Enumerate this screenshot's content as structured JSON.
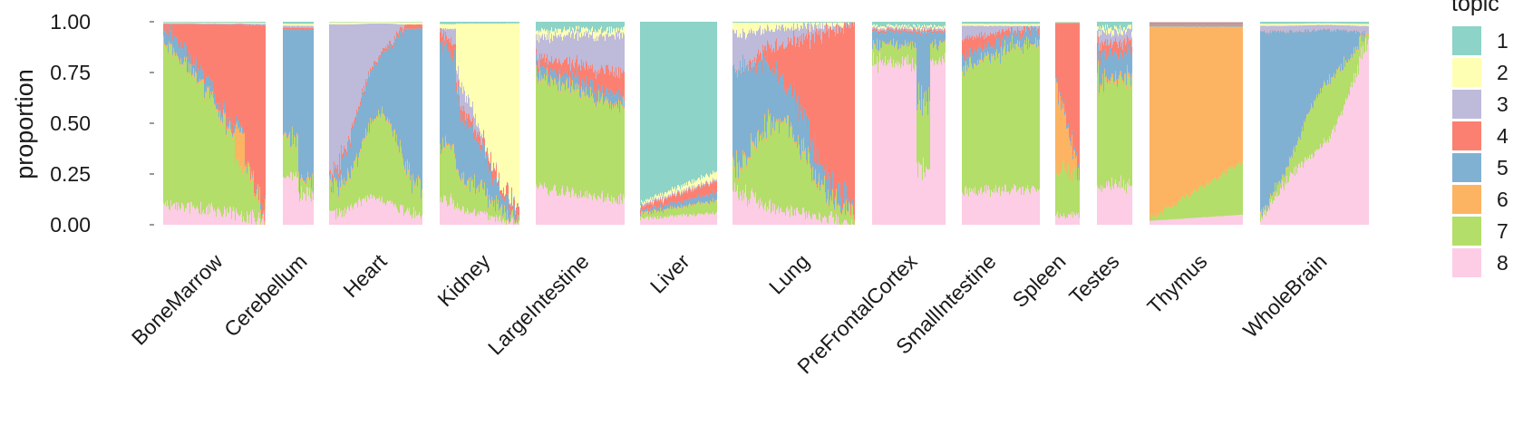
{
  "chart_data": {
    "type": "bar",
    "subtype": "stacked-proportion-by-sample, faceted by tissue",
    "ylabel": "proportion",
    "xlabel": "",
    "ylim": [
      0,
      1
    ],
    "y_ticks": [
      "0.00",
      "0.25",
      "0.50",
      "0.75",
      "1.00"
    ],
    "grid": false,
    "legend": {
      "title": "topic",
      "position": "right",
      "entries": [
        {
          "label": "1",
          "color": "#8dd3c7"
        },
        {
          "label": "2",
          "color": "#ffffb3"
        },
        {
          "label": "3",
          "color": "#bebada"
        },
        {
          "label": "4",
          "color": "#fb8072"
        },
        {
          "label": "5",
          "color": "#80b1d3"
        },
        {
          "label": "6",
          "color": "#fdb462"
        },
        {
          "label": "7",
          "color": "#b3de69"
        },
        {
          "label": "8",
          "color": "#fccde5"
        }
      ]
    },
    "categories": [
      "BoneMarrow",
      "Cerebellum",
      "Heart",
      "Kidney",
      "LargeIntestine",
      "Liver",
      "Lung",
      "PreFrontalCortex",
      "SmallIntestine",
      "Spleen",
      "Testes",
      "Thymus",
      "WholeBrain"
    ],
    "approx_mean_topic_proportions_by_tissue": [
      {
        "tissue": "BoneMarrow",
        "topic_proportions": {
          "1": 0.0,
          "2": 0.0,
          "3": 0.0,
          "4": 0.4,
          "5": 0.05,
          "6": 0.02,
          "7": 0.45,
          "8": 0.08
        }
      },
      {
        "tissue": "Cerebellum",
        "topic_proportions": {
          "1": 0.01,
          "2": 0.01,
          "3": 0.01,
          "4": 0.01,
          "5": 0.7,
          "6": 0.01,
          "7": 0.07,
          "8": 0.18
        }
      },
      {
        "tissue": "Heart",
        "topic_proportions": {
          "1": 0.0,
          "2": 0.01,
          "3": 0.35,
          "4": 0.02,
          "5": 0.28,
          "6": 0.01,
          "7": 0.23,
          "8": 0.1
        }
      },
      {
        "tissue": "Kidney",
        "topic_proportions": {
          "1": 0.01,
          "2": 0.5,
          "3": 0.07,
          "4": 0.03,
          "5": 0.14,
          "6": 0.01,
          "7": 0.15,
          "8": 0.09
        }
      },
      {
        "tissue": "LargeIntestine",
        "topic_proportions": {
          "1": 0.04,
          "2": 0.03,
          "3": 0.1,
          "4": 0.06,
          "5": 0.03,
          "6": 0.01,
          "7": 0.56,
          "8": 0.17
        }
      },
      {
        "tissue": "Liver",
        "topic_proportions": {
          "1": 0.84,
          "2": 0.02,
          "3": 0.01,
          "4": 0.03,
          "5": 0.02,
          "6": 0.01,
          "7": 0.03,
          "8": 0.04
        }
      },
      {
        "tissue": "Lung",
        "topic_proportions": {
          "1": 0.0,
          "2": 0.02,
          "3": 0.06,
          "4": 0.4,
          "5": 0.2,
          "6": 0.01,
          "7": 0.23,
          "8": 0.08
        }
      },
      {
        "tissue": "PreFrontalCortex",
        "topic_proportions": {
          "1": 0.02,
          "2": 0.01,
          "3": 0.01,
          "4": 0.01,
          "5": 0.1,
          "6": 0.01,
          "7": 0.12,
          "8": 0.72
        }
      },
      {
        "tissue": "SmallIntestine",
        "topic_proportions": {
          "1": 0.01,
          "2": 0.01,
          "3": 0.04,
          "4": 0.05,
          "5": 0.06,
          "6": 0.01,
          "7": 0.66,
          "8": 0.16
        }
      },
      {
        "tissue": "Spleen",
        "topic_proportions": {
          "1": 0.0,
          "2": 0.0,
          "3": 0.0,
          "4": 0.55,
          "5": 0.02,
          "6": 0.17,
          "7": 0.2,
          "8": 0.06
        }
      },
      {
        "tissue": "Testes",
        "topic_proportions": {
          "1": 0.03,
          "2": 0.02,
          "3": 0.05,
          "4": 0.05,
          "5": 0.13,
          "6": 0.02,
          "7": 0.49,
          "8": 0.21
        }
      },
      {
        "tissue": "Thymus",
        "topic_proportions": {
          "1": 0.0,
          "2": 0.0,
          "3": 0.0,
          "4": 0.01,
          "5": 0.01,
          "6": 0.86,
          "7": 0.09,
          "8": 0.03
        }
      },
      {
        "tissue": "WholeBrain",
        "topic_proportions": {
          "1": 0.01,
          "2": 0.01,
          "3": 0.02,
          "4": 0.0,
          "5": 0.6,
          "6": 0.01,
          "7": 0.15,
          "8": 0.2
        }
      }
    ]
  }
}
